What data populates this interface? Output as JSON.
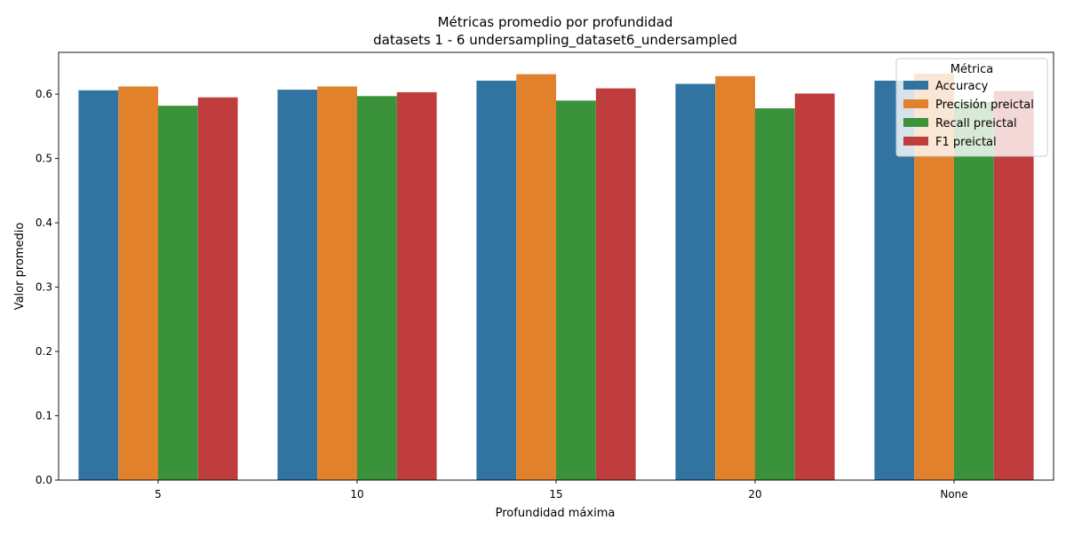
{
  "chart_data": {
    "type": "bar",
    "title": "Métricas promedio por profundidad",
    "subtitle": "datasets 1 - 6 undersampling_dataset6_undersampled",
    "xlabel": "Profundidad máxima",
    "ylabel": "Valor promedio",
    "categories": [
      "5",
      "10",
      "15",
      "20",
      "None"
    ],
    "ylim": [
      0,
      0.665
    ],
    "yticks": [
      "0.0",
      "0.1",
      "0.2",
      "0.3",
      "0.4",
      "0.5",
      "0.6"
    ],
    "grid": false,
    "legend": {
      "title": "Métrica",
      "placement": "top-right"
    },
    "series": [
      {
        "name": "Accuracy",
        "color": "#3274a1",
        "values": [
          0.606,
          0.607,
          0.621,
          0.616,
          0.621
        ]
      },
      {
        "name": "Precisión preictal",
        "color": "#e1812c",
        "values": [
          0.612,
          0.612,
          0.631,
          0.628,
          0.632
        ]
      },
      {
        "name": "Recall preictal",
        "color": "#3a923a",
        "values": [
          0.582,
          0.597,
          0.59,
          0.578,
          0.588
        ]
      },
      {
        "name": "F1 preictal",
        "color": "#c03d3e",
        "values": [
          0.595,
          0.603,
          0.609,
          0.601,
          0.605
        ]
      }
    ]
  }
}
